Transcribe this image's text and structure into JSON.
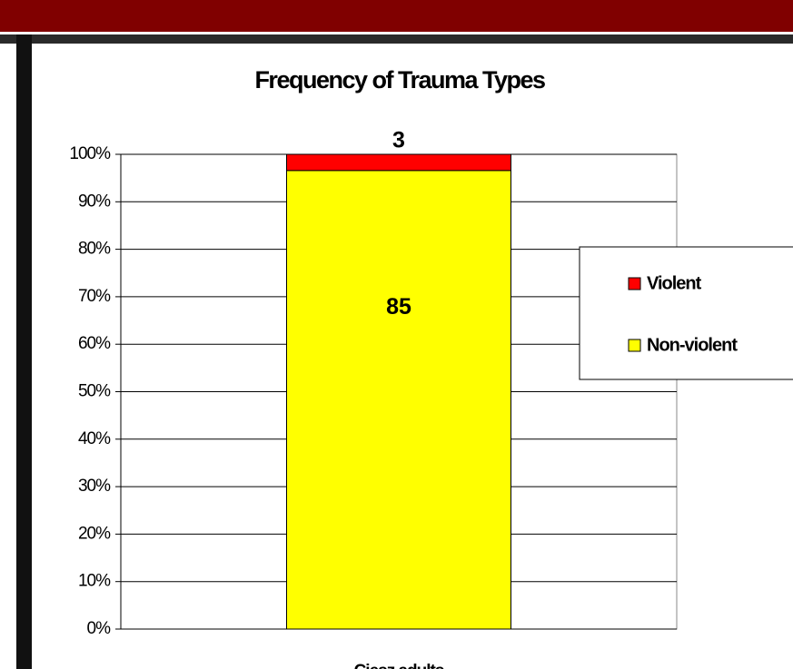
{
  "chart_data": {
    "type": "bar",
    "stack": "percent",
    "title": "Frequency of Trauma Types",
    "categories": [
      "Ciesz adults"
    ],
    "series": [
      {
        "name": "Non-violent",
        "color": "#ffff00",
        "values": [
          85
        ]
      },
      {
        "name": "Violent",
        "color": "#ff0000",
        "values": [
          3
        ]
      }
    ],
    "ylim": [
      0,
      100
    ],
    "yticks": [
      {
        "value": 0,
        "label": "0%"
      },
      {
        "value": 10,
        "label": "10%"
      },
      {
        "value": 20,
        "label": "20%"
      },
      {
        "value": 30,
        "label": "30%"
      },
      {
        "value": 40,
        "label": "40%"
      },
      {
        "value": 50,
        "label": "50%"
      },
      {
        "value": 60,
        "label": "60%"
      },
      {
        "value": 70,
        "label": "70%"
      },
      {
        "value": 80,
        "label": "80%"
      },
      {
        "value": 90,
        "label": "90%"
      },
      {
        "value": 100,
        "label": "100%"
      }
    ],
    "grid": true,
    "legend": "right"
  }
}
